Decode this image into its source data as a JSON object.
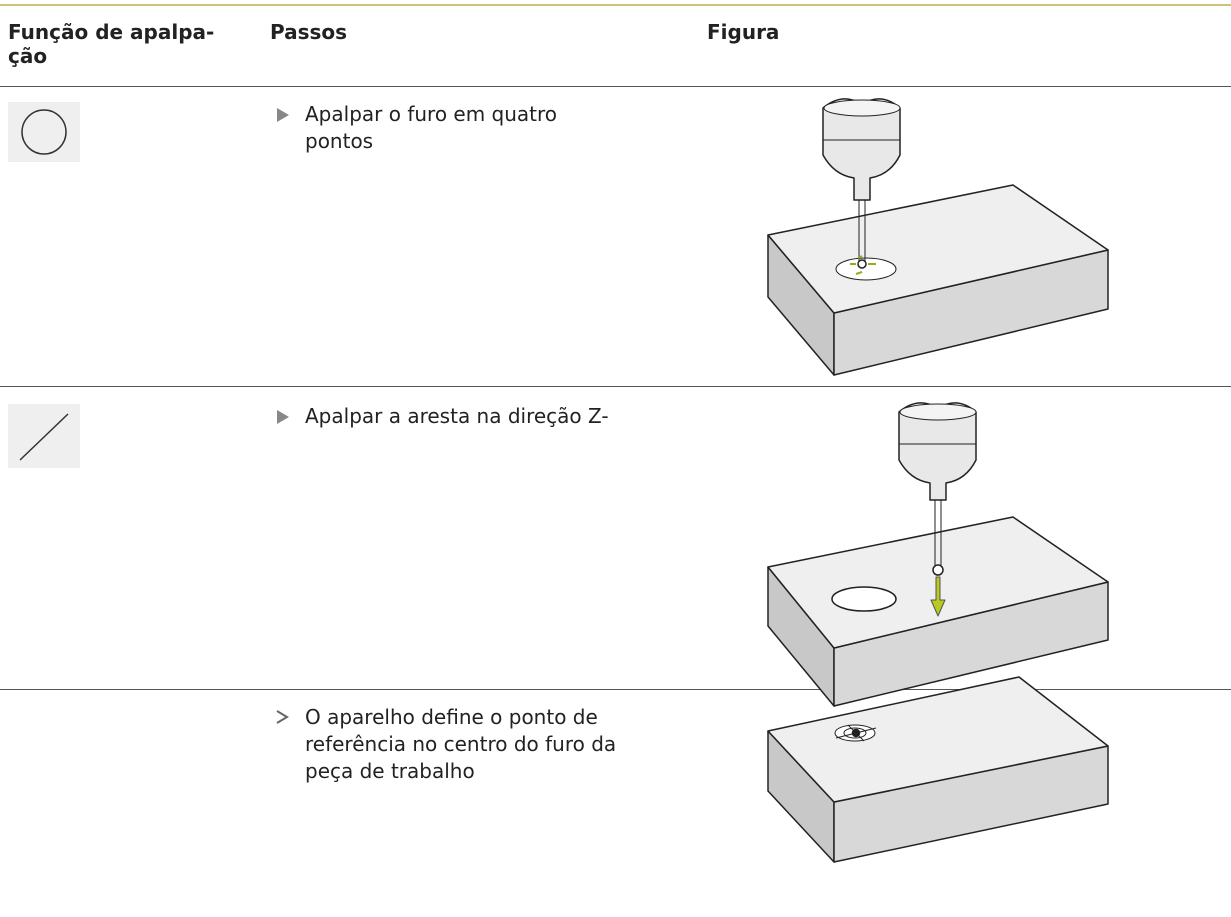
{
  "header": {
    "columns": [
      [
        "Função de apalpa-",
        "ção"
      ],
      "Passos",
      "Figura"
    ]
  },
  "rows": [
    {
      "step": [
        "Apalpar o furo em quatro",
        "pontos"
      ]
    },
    {
      "step": [
        "Apalpar a aresta na direção Z-"
      ]
    },
    {
      "step": [
        "O aparelho define o ponto de",
        "referência no centro do furo da",
        "peça de trabalho"
      ]
    }
  ]
}
